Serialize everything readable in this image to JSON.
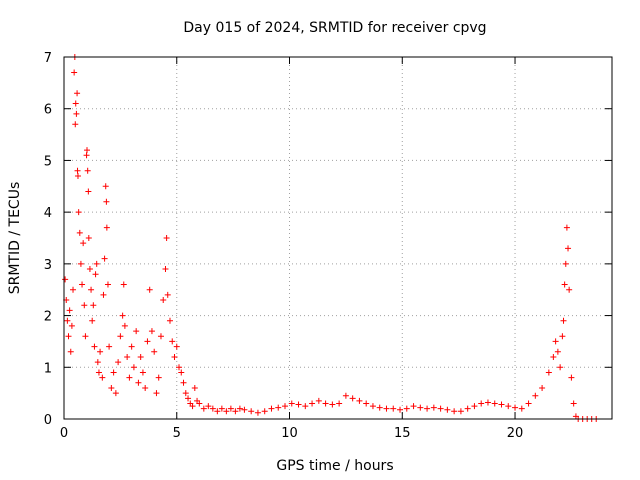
{
  "chart_data": {
    "type": "scatter",
    "title": "Day 015 of 2024, SRMTID for receiver cpvg",
    "xlabel": "GPS time / hours",
    "ylabel": "SRMTID / TECUs",
    "xlim": [
      0,
      24.3
    ],
    "ylim": [
      0,
      7
    ],
    "xticks": [
      0,
      5,
      10,
      15,
      20
    ],
    "yticks": [
      0,
      1,
      2,
      3,
      4,
      5,
      6,
      7
    ],
    "grid": true,
    "marker": "+",
    "series": [
      {
        "name": "SRMTID",
        "color": "#ff0000",
        "points": [
          [
            0.05,
            2.7
          ],
          [
            0.1,
            2.3
          ],
          [
            0.15,
            1.9
          ],
          [
            0.2,
            1.6
          ],
          [
            0.25,
            2.1
          ],
          [
            0.3,
            1.3
          ],
          [
            0.35,
            1.8
          ],
          [
            0.4,
            2.5
          ],
          [
            0.45,
            6.7
          ],
          [
            0.48,
            7.0
          ],
          [
            0.5,
            5.7
          ],
          [
            0.52,
            6.1
          ],
          [
            0.55,
            5.9
          ],
          [
            0.58,
            6.3
          ],
          [
            0.6,
            4.8
          ],
          [
            0.62,
            4.7
          ],
          [
            0.65,
            4.0
          ],
          [
            0.7,
            3.6
          ],
          [
            0.75,
            3.0
          ],
          [
            0.8,
            2.6
          ],
          [
            0.85,
            3.4
          ],
          [
            0.9,
            2.2
          ],
          [
            0.95,
            1.6
          ],
          [
            1.0,
            5.1
          ],
          [
            1.02,
            5.2
          ],
          [
            1.05,
            4.8
          ],
          [
            1.08,
            4.4
          ],
          [
            1.1,
            3.5
          ],
          [
            1.15,
            2.9
          ],
          [
            1.2,
            2.5
          ],
          [
            1.25,
            1.9
          ],
          [
            1.3,
            2.2
          ],
          [
            1.35,
            1.4
          ],
          [
            1.4,
            2.8
          ],
          [
            1.45,
            3.0
          ],
          [
            1.5,
            1.1
          ],
          [
            1.55,
            0.9
          ],
          [
            1.6,
            1.3
          ],
          [
            1.7,
            0.8
          ],
          [
            1.75,
            2.4
          ],
          [
            1.8,
            3.1
          ],
          [
            1.85,
            4.5
          ],
          [
            1.88,
            4.2
          ],
          [
            1.9,
            3.7
          ],
          [
            1.95,
            2.6
          ],
          [
            2.0,
            1.4
          ],
          [
            2.1,
            0.6
          ],
          [
            2.2,
            0.9
          ],
          [
            2.3,
            0.5
          ],
          [
            2.4,
            1.1
          ],
          [
            2.5,
            1.6
          ],
          [
            2.6,
            2.0
          ],
          [
            2.65,
            2.6
          ],
          [
            2.7,
            1.8
          ],
          [
            2.8,
            1.2
          ],
          [
            2.9,
            0.8
          ],
          [
            3.0,
            1.4
          ],
          [
            3.1,
            1.0
          ],
          [
            3.2,
            1.7
          ],
          [
            3.3,
            0.7
          ],
          [
            3.4,
            1.2
          ],
          [
            3.5,
            0.9
          ],
          [
            3.6,
            0.6
          ],
          [
            3.7,
            1.5
          ],
          [
            3.8,
            2.5
          ],
          [
            3.9,
            1.7
          ],
          [
            4.0,
            1.3
          ],
          [
            4.1,
            0.5
          ],
          [
            4.2,
            0.8
          ],
          [
            4.3,
            1.6
          ],
          [
            4.4,
            2.3
          ],
          [
            4.5,
            2.9
          ],
          [
            4.55,
            3.5
          ],
          [
            4.6,
            2.4
          ],
          [
            4.7,
            1.9
          ],
          [
            4.8,
            1.5
          ],
          [
            4.9,
            1.2
          ],
          [
            5.0,
            1.4
          ],
          [
            5.1,
            1.0
          ],
          [
            5.2,
            0.9
          ],
          [
            5.3,
            0.7
          ],
          [
            5.4,
            0.5
          ],
          [
            5.5,
            0.4
          ],
          [
            5.6,
            0.3
          ],
          [
            5.7,
            0.25
          ],
          [
            5.8,
            0.6
          ],
          [
            5.9,
            0.35
          ],
          [
            6.0,
            0.3
          ],
          [
            6.2,
            0.2
          ],
          [
            6.4,
            0.25
          ],
          [
            6.6,
            0.2
          ],
          [
            6.8,
            0.15
          ],
          [
            7.0,
            0.2
          ],
          [
            7.2,
            0.15
          ],
          [
            7.4,
            0.2
          ],
          [
            7.6,
            0.15
          ],
          [
            7.8,
            0.2
          ],
          [
            8.0,
            0.18
          ],
          [
            8.3,
            0.15
          ],
          [
            8.6,
            0.12
          ],
          [
            8.9,
            0.15
          ],
          [
            9.2,
            0.2
          ],
          [
            9.5,
            0.22
          ],
          [
            9.8,
            0.25
          ],
          [
            10.1,
            0.3
          ],
          [
            10.4,
            0.28
          ],
          [
            10.7,
            0.25
          ],
          [
            11.0,
            0.3
          ],
          [
            11.3,
            0.35
          ],
          [
            11.6,
            0.3
          ],
          [
            11.9,
            0.28
          ],
          [
            12.2,
            0.3
          ],
          [
            12.5,
            0.45
          ],
          [
            12.8,
            0.4
          ],
          [
            13.1,
            0.35
          ],
          [
            13.4,
            0.3
          ],
          [
            13.7,
            0.25
          ],
          [
            14.0,
            0.22
          ],
          [
            14.3,
            0.2
          ],
          [
            14.6,
            0.2
          ],
          [
            14.9,
            0.18
          ],
          [
            15.2,
            0.2
          ],
          [
            15.5,
            0.25
          ],
          [
            15.8,
            0.22
          ],
          [
            16.1,
            0.2
          ],
          [
            16.4,
            0.22
          ],
          [
            16.7,
            0.2
          ],
          [
            17.0,
            0.18
          ],
          [
            17.3,
            0.15
          ],
          [
            17.6,
            0.15
          ],
          [
            17.9,
            0.2
          ],
          [
            18.2,
            0.25
          ],
          [
            18.5,
            0.3
          ],
          [
            18.8,
            0.32
          ],
          [
            19.1,
            0.3
          ],
          [
            19.4,
            0.28
          ],
          [
            19.7,
            0.25
          ],
          [
            20.0,
            0.22
          ],
          [
            20.3,
            0.2
          ],
          [
            20.6,
            0.3
          ],
          [
            20.9,
            0.45
          ],
          [
            21.2,
            0.6
          ],
          [
            21.5,
            0.9
          ],
          [
            21.7,
            1.2
          ],
          [
            21.8,
            1.5
          ],
          [
            21.9,
            1.3
          ],
          [
            22.0,
            1.0
          ],
          [
            22.1,
            1.6
          ],
          [
            22.15,
            1.9
          ],
          [
            22.2,
            2.6
          ],
          [
            22.25,
            3.0
          ],
          [
            22.3,
            3.7
          ],
          [
            22.35,
            3.3
          ],
          [
            22.4,
            2.5
          ],
          [
            22.5,
            0.8
          ],
          [
            22.6,
            0.3
          ],
          [
            22.7,
            0.05
          ],
          [
            22.8,
            0.0
          ],
          [
            23.0,
            0.0
          ],
          [
            23.2,
            0.0
          ],
          [
            23.4,
            0.0
          ],
          [
            23.6,
            0.0
          ]
        ]
      }
    ]
  }
}
